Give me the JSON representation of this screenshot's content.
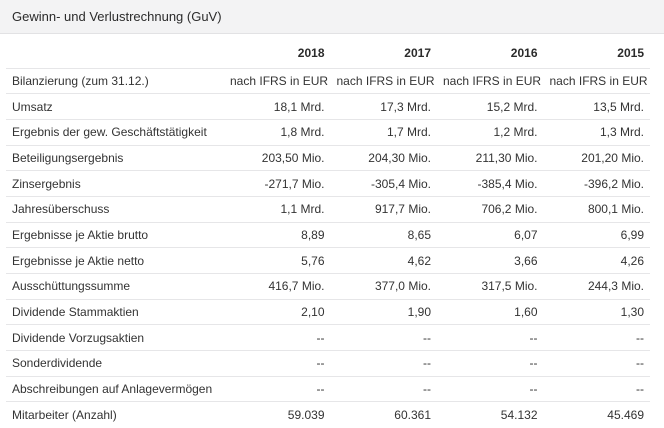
{
  "header": {
    "title": "Gewinn- und Verlustrechnung (GuV)"
  },
  "table": {
    "years": [
      "2018",
      "2017",
      "2016",
      "2015"
    ],
    "rows": [
      {
        "label": "Bilanzierung (zum 31.12.)",
        "values": [
          "nach IFRS in EUR",
          "nach IFRS in EUR",
          "nach IFRS in EUR",
          "nach IFRS in EUR"
        ]
      },
      {
        "label": "Umsatz",
        "values": [
          "18,1 Mrd.",
          "17,3 Mrd.",
          "15,2 Mrd.",
          "13,5 Mrd."
        ]
      },
      {
        "label": "Ergebnis der gew. Geschäftstätigkeit",
        "values": [
          "1,8 Mrd.",
          "1,7 Mrd.",
          "1,2 Mrd.",
          "1,3 Mrd."
        ]
      },
      {
        "label": "Beteiligungsergebnis",
        "values": [
          "203,50 Mio.",
          "204,30 Mio.",
          "211,30 Mio.",
          "201,20 Mio."
        ]
      },
      {
        "label": "Zinsergebnis",
        "values": [
          "-271,7 Mio.",
          "-305,4 Mio.",
          "-385,4 Mio.",
          "-396,2 Mio."
        ]
      },
      {
        "label": "Jahresüberschuss",
        "values": [
          "1,1 Mrd.",
          "917,7 Mio.",
          "706,2 Mio.",
          "800,1 Mio."
        ]
      },
      {
        "label": "Ergebnisse je Aktie brutto",
        "values": [
          "8,89",
          "8,65",
          "6,07",
          "6,99"
        ]
      },
      {
        "label": "Ergebnisse je Aktie netto",
        "values": [
          "5,76",
          "4,62",
          "3,66",
          "4,26"
        ]
      },
      {
        "label": "Ausschüttungssumme",
        "values": [
          "416,7 Mio.",
          "377,0 Mio.",
          "317,5 Mio.",
          "244,3 Mio."
        ]
      },
      {
        "label": "Dividende Stammaktien",
        "values": [
          "2,10",
          "1,90",
          "1,60",
          "1,30"
        ]
      },
      {
        "label": "Dividende Vorzugsaktien",
        "values": [
          "--",
          "--",
          "--",
          "--"
        ]
      },
      {
        "label": "Sonderdividende",
        "values": [
          "--",
          "--",
          "--",
          "--"
        ]
      },
      {
        "label": "Abschreibungen auf Anlagevermögen",
        "values": [
          "--",
          "--",
          "--",
          "--"
        ]
      },
      {
        "label": "Mitarbeiter (Anzahl)",
        "values": [
          "59.039",
          "60.361",
          "54.132",
          "45.469"
        ]
      }
    ]
  }
}
